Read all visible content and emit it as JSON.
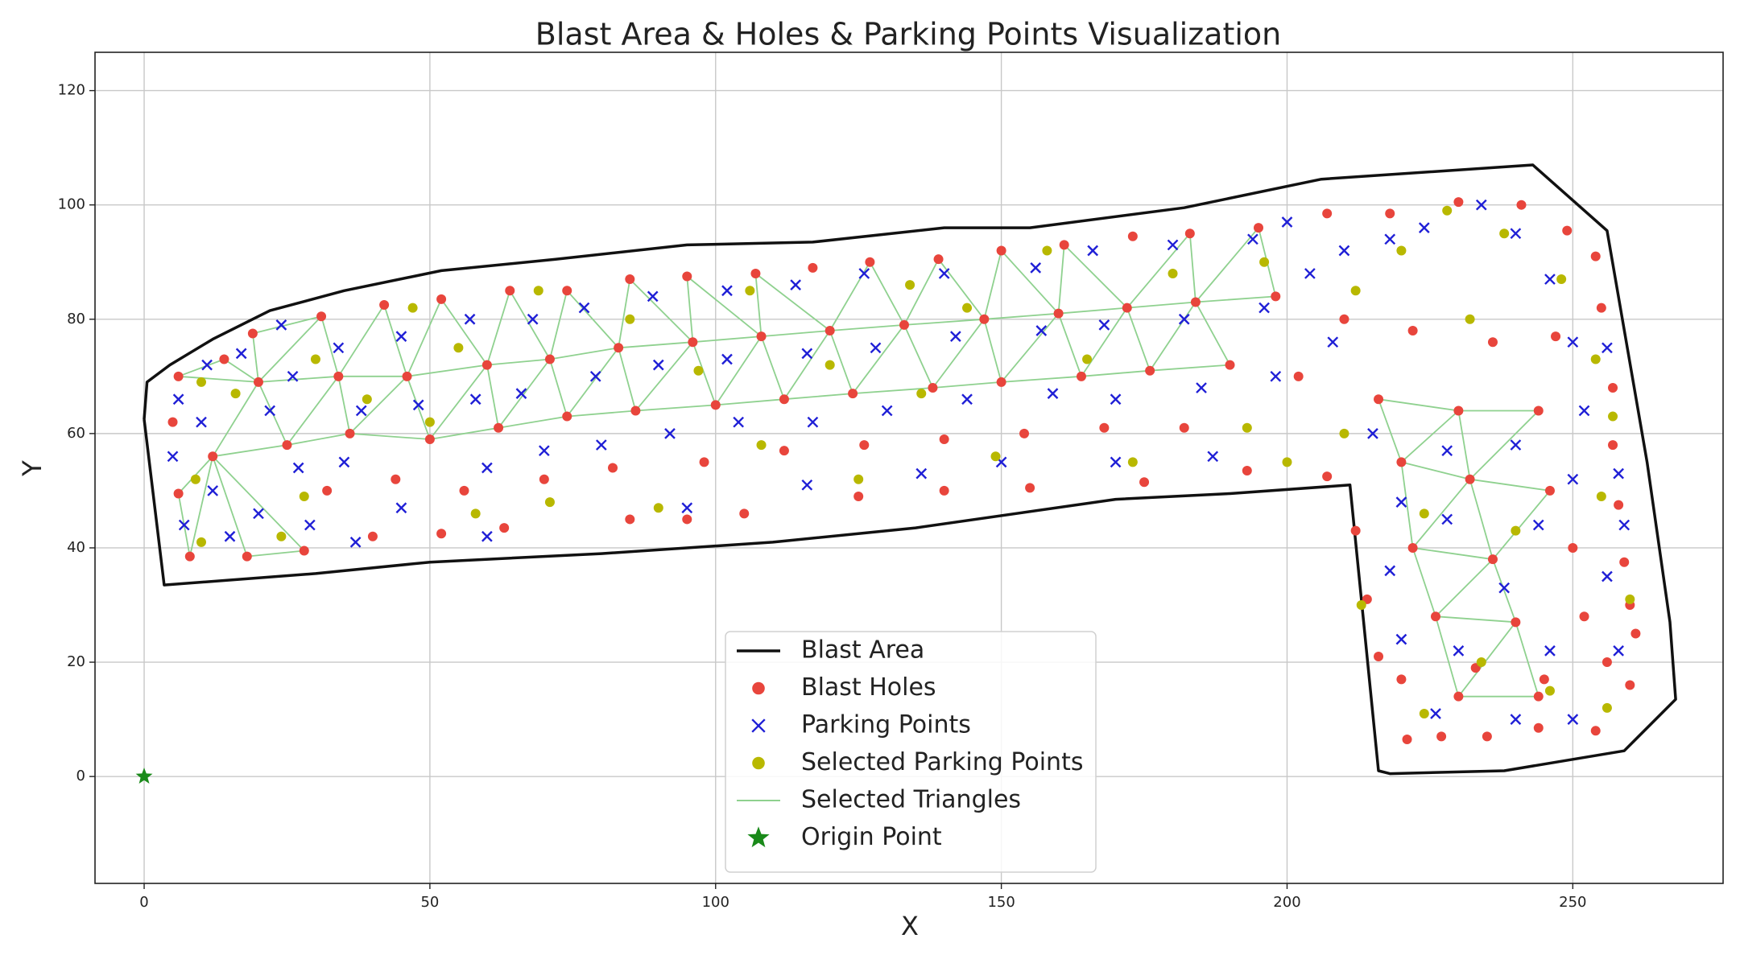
{
  "chart_data": {
    "type": "scatter",
    "title": "Blast Area & Holes & Parking Points Visualization",
    "xlabel": "X",
    "ylabel": "Y",
    "xlim": [
      -8.6,
      276.3
    ],
    "ylim": [
      -18.7,
      126.7
    ],
    "xticks": [
      0,
      50,
      100,
      150,
      200,
      250
    ],
    "yticks": [
      0,
      20,
      40,
      60,
      80,
      100,
      120
    ],
    "grid": true,
    "legend": "lower center",
    "series": [
      {
        "name": "Blast Area",
        "kind": "line",
        "color": "#111111",
        "x": [
          0,
          0.5,
          4.5,
          12,
          22,
          35,
          52,
          72,
          95,
          117,
          140,
          155,
          182,
          206,
          243,
          256,
          263,
          267,
          268,
          259,
          238,
          218,
          216,
          211,
          190,
          170,
          135,
          110,
          80,
          50,
          30,
          3.5,
          0
        ],
        "y": [
          62.5,
          69,
          72,
          76.5,
          81.5,
          85,
          88.5,
          90.5,
          93,
          93.5,
          96,
          96,
          99.5,
          104.5,
          107,
          95.5,
          55,
          27,
          13.5,
          4.5,
          1,
          0.5,
          1,
          51,
          49.5,
          48.5,
          43.5,
          41,
          39,
          37.5,
          35.5,
          33.5,
          62.5
        ]
      },
      {
        "name": "Blast Holes",
        "kind": "point",
        "marker": "o",
        "color": "#e8453c",
        "x": [
          6,
          14,
          19,
          31,
          42,
          52,
          64,
          74,
          85,
          95,
          107,
          117,
          127,
          139,
          150,
          161,
          173,
          183,
          195,
          207,
          218,
          230,
          241,
          249,
          254,
          255,
          257,
          257,
          258,
          259,
          260,
          261,
          260,
          254,
          244,
          235,
          227,
          221,
          5,
          6,
          8,
          18,
          28,
          40,
          52,
          63,
          85,
          95,
          105,
          125,
          140,
          155,
          175,
          193,
          207,
          212,
          214,
          216,
          220,
          233,
          245,
          256,
          20,
          34,
          46,
          60,
          71,
          83,
          96,
          108,
          120,
          133,
          147,
          160,
          172,
          184,
          198,
          210,
          222,
          236,
          247,
          12,
          25,
          36,
          50,
          62,
          74,
          86,
          100,
          112,
          124,
          138,
          150,
          164,
          176,
          190,
          202,
          216,
          230,
          244,
          32,
          44,
          56,
          70,
          82,
          98,
          112,
          126,
          140,
          154,
          168,
          182,
          220,
          232,
          246,
          222,
          236,
          250,
          226,
          240,
          252,
          230,
          244
        ],
        "y": [
          70,
          73,
          77.5,
          80.5,
          82.5,
          83.5,
          85,
          85,
          87,
          87.5,
          88,
          89,
          90,
          90.5,
          92,
          93,
          94.5,
          95,
          96,
          98.5,
          98.5,
          100.5,
          100,
          95.5,
          91,
          82,
          68,
          58,
          47.5,
          37.5,
          30,
          25,
          16,
          8,
          8.5,
          7,
          7,
          6.5,
          62,
          49.5,
          38.5,
          38.5,
          39.5,
          42,
          42.5,
          43.5,
          45,
          45,
          46,
          49,
          50,
          50.5,
          51.5,
          53.5,
          52.5,
          43,
          31,
          21,
          17,
          19,
          17,
          20,
          69,
          70,
          70,
          72,
          73,
          75,
          76,
          77,
          78,
          79,
          80,
          81,
          82,
          83,
          84,
          80,
          78,
          76,
          77,
          56,
          58,
          60,
          59,
          61,
          63,
          64,
          65,
          66,
          67,
          68,
          69,
          70,
          71,
          72,
          70,
          66,
          64,
          64,
          50,
          52,
          50,
          52,
          54,
          55,
          57,
          58,
          59,
          60,
          61,
          61,
          55,
          52,
          50,
          40,
          38,
          40,
          28,
          27,
          28,
          14,
          14
        ]
      },
      {
        "name": "Parking Points",
        "kind": "point",
        "marker": "x",
        "color": "#1f1fd6",
        "x": [
          6,
          5,
          7,
          11,
          10,
          12,
          15,
          17,
          22,
          20,
          24,
          26,
          27,
          29,
          34,
          38,
          35,
          37,
          45,
          48,
          45,
          57,
          58,
          60,
          60,
          68,
          66,
          70,
          77,
          79,
          80,
          89,
          90,
          92,
          95,
          102,
          102,
          104,
          114,
          116,
          117,
          116,
          126,
          128,
          130,
          136,
          140,
          142,
          144,
          150,
          156,
          157,
          159,
          166,
          168,
          170,
          170,
          180,
          182,
          185,
          187,
          194,
          196,
          198,
          200,
          204,
          208,
          210,
          218,
          224,
          234,
          240,
          246,
          250,
          252,
          250,
          256,
          258,
          259,
          256,
          258,
          246,
          238,
          228,
          218,
          220,
          230,
          226,
          240,
          250,
          228,
          240,
          215,
          244,
          220
        ],
        "y": [
          66,
          56,
          44,
          72,
          62,
          50,
          42,
          74,
          64,
          46,
          79,
          70,
          54,
          44,
          75,
          64,
          55,
          41,
          77,
          65,
          47,
          80,
          66,
          54,
          42,
          80,
          67,
          57,
          82,
          70,
          58,
          84,
          72,
          60,
          47,
          85,
          73,
          62,
          86,
          74,
          62,
          51,
          88,
          75,
          64,
          53,
          88,
          77,
          66,
          55,
          89,
          78,
          67,
          92,
          79,
          66,
          55,
          93,
          80,
          68,
          56,
          94,
          82,
          70,
          97,
          88,
          76,
          92,
          94,
          96,
          100,
          95,
          87,
          76,
          64,
          52,
          75,
          53,
          44,
          35,
          22,
          22,
          33,
          45,
          36,
          24,
          22,
          11,
          10,
          10,
          57,
          58,
          60,
          44,
          48
        ]
      },
      {
        "name": "Selected Parking Points",
        "kind": "point",
        "marker": "o",
        "color": "#b8b800",
        "x": [
          10,
          16,
          9,
          10,
          24,
          30,
          28,
          39,
          47,
          50,
          55,
          58,
          69,
          71,
          85,
          90,
          97,
          106,
          108,
          120,
          125,
          134,
          136,
          144,
          149,
          158,
          165,
          173,
          180,
          193,
          196,
          212,
          220,
          228,
          238,
          248,
          254,
          257,
          255,
          260,
          256,
          246,
          234,
          224,
          213,
          224,
          240,
          232,
          210,
          200
        ],
        "y": [
          69,
          67,
          52,
          41,
          42,
          73,
          49,
          66,
          82,
          62,
          75,
          46,
          85,
          48,
          80,
          47,
          71,
          85,
          58,
          72,
          52,
          86,
          67,
          82,
          56,
          92,
          73,
          55,
          88,
          61,
          90,
          85,
          92,
          99,
          95,
          87,
          73,
          63,
          49,
          31,
          12,
          15,
          20,
          11,
          30,
          46,
          43,
          80,
          60,
          55
        ]
      },
      {
        "name": "Selected Triangles",
        "kind": "line",
        "color": "#8fd18f",
        "x": [
          6,
          14,
          20,
          6,
          null,
          20,
          19,
          31,
          20,
          null,
          20,
          34,
          31,
          20,
          null,
          34,
          42,
          46,
          34,
          null,
          46,
          52,
          60,
          46,
          null,
          60,
          64,
          71,
          60,
          null,
          71,
          74,
          83,
          71,
          null,
          83,
          85,
          96,
          83,
          null,
          96,
          95,
          108,
          96,
          null,
          108,
          107,
          120,
          108,
          null,
          120,
          127,
          133,
          120,
          null,
          133,
          139,
          147,
          133,
          null,
          147,
          150,
          160,
          147,
          null,
          160,
          161,
          172,
          160,
          null,
          172,
          183,
          184,
          172,
          null,
          184,
          195,
          198,
          184,
          null,
          12,
          20,
          25,
          12,
          null,
          25,
          34,
          36,
          25,
          null,
          36,
          46,
          50,
          36,
          null,
          50,
          60,
          62,
          50,
          null,
          62,
          71,
          74,
          62,
          null,
          74,
          83,
          86,
          74,
          null,
          86,
          96,
          100,
          86,
          null,
          100,
          108,
          112,
          100,
          null,
          112,
          120,
          124,
          112,
          null,
          124,
          133,
          138,
          124,
          null,
          138,
          147,
          150,
          138,
          null,
          150,
          160,
          164,
          150,
          null,
          164,
          172,
          176,
          164,
          null,
          176,
          184,
          190,
          176,
          null,
          6,
          12,
          8,
          6,
          null,
          12,
          18,
          28,
          12,
          null,
          222,
          236,
          226,
          222,
          null,
          236,
          240,
          226,
          236,
          null,
          226,
          240,
          230,
          226,
          null,
          230,
          240,
          244,
          230,
          null,
          220,
          232,
          222,
          220,
          null,
          232,
          246,
          236,
          232,
          null,
          216,
          230,
          220,
          216,
          null,
          230,
          244,
          232,
          230
        ],
        "y": [
          70,
          73,
          69,
          70,
          null,
          69,
          77.5,
          80.5,
          69,
          null,
          69,
          70,
          80.5,
          69,
          null,
          70,
          82.5,
          70,
          70,
          null,
          70,
          83.5,
          72,
          70,
          null,
          72,
          85,
          73,
          72,
          null,
          73,
          85,
          75,
          73,
          null,
          75,
          87,
          76,
          75,
          null,
          76,
          87.5,
          77,
          76,
          null,
          77,
          88,
          78,
          77,
          null,
          78,
          90,
          79,
          78,
          null,
          79,
          90.5,
          80,
          79,
          null,
          80,
          92,
          81,
          80,
          null,
          81,
          93,
          82,
          81,
          null,
          82,
          95,
          83,
          82,
          null,
          83,
          96,
          84,
          83,
          null,
          56,
          69,
          58,
          56,
          null,
          58,
          70,
          60,
          58,
          null,
          60,
          70,
          59,
          60,
          null,
          59,
          72,
          61,
          59,
          null,
          61,
          73,
          63,
          61,
          null,
          63,
          75,
          64,
          63,
          null,
          64,
          76,
          65,
          64,
          null,
          65,
          77,
          66,
          65,
          null,
          66,
          78,
          67,
          66,
          null,
          67,
          79,
          68,
          67,
          null,
          68,
          80,
          69,
          68,
          null,
          69,
          81,
          70,
          69,
          null,
          70,
          82,
          71,
          70,
          null,
          71,
          83,
          72,
          71,
          null,
          49.5,
          56,
          38.5,
          49.5,
          null,
          56,
          38.5,
          39.5,
          56,
          null,
          40,
          38,
          28,
          40,
          null,
          38,
          27,
          28,
          38,
          null,
          28,
          27,
          14,
          28,
          null,
          14,
          27,
          14,
          14,
          null,
          55,
          52,
          40,
          55,
          null,
          52,
          50,
          38,
          52,
          null,
          66,
          64,
          55,
          66,
          null,
          64,
          64,
          52,
          64
        ]
      },
      {
        "name": "Origin Point",
        "kind": "point",
        "marker": "*",
        "color": "#1a8a1a",
        "x": [
          0
        ],
        "y": [
          0
        ]
      }
    ]
  }
}
